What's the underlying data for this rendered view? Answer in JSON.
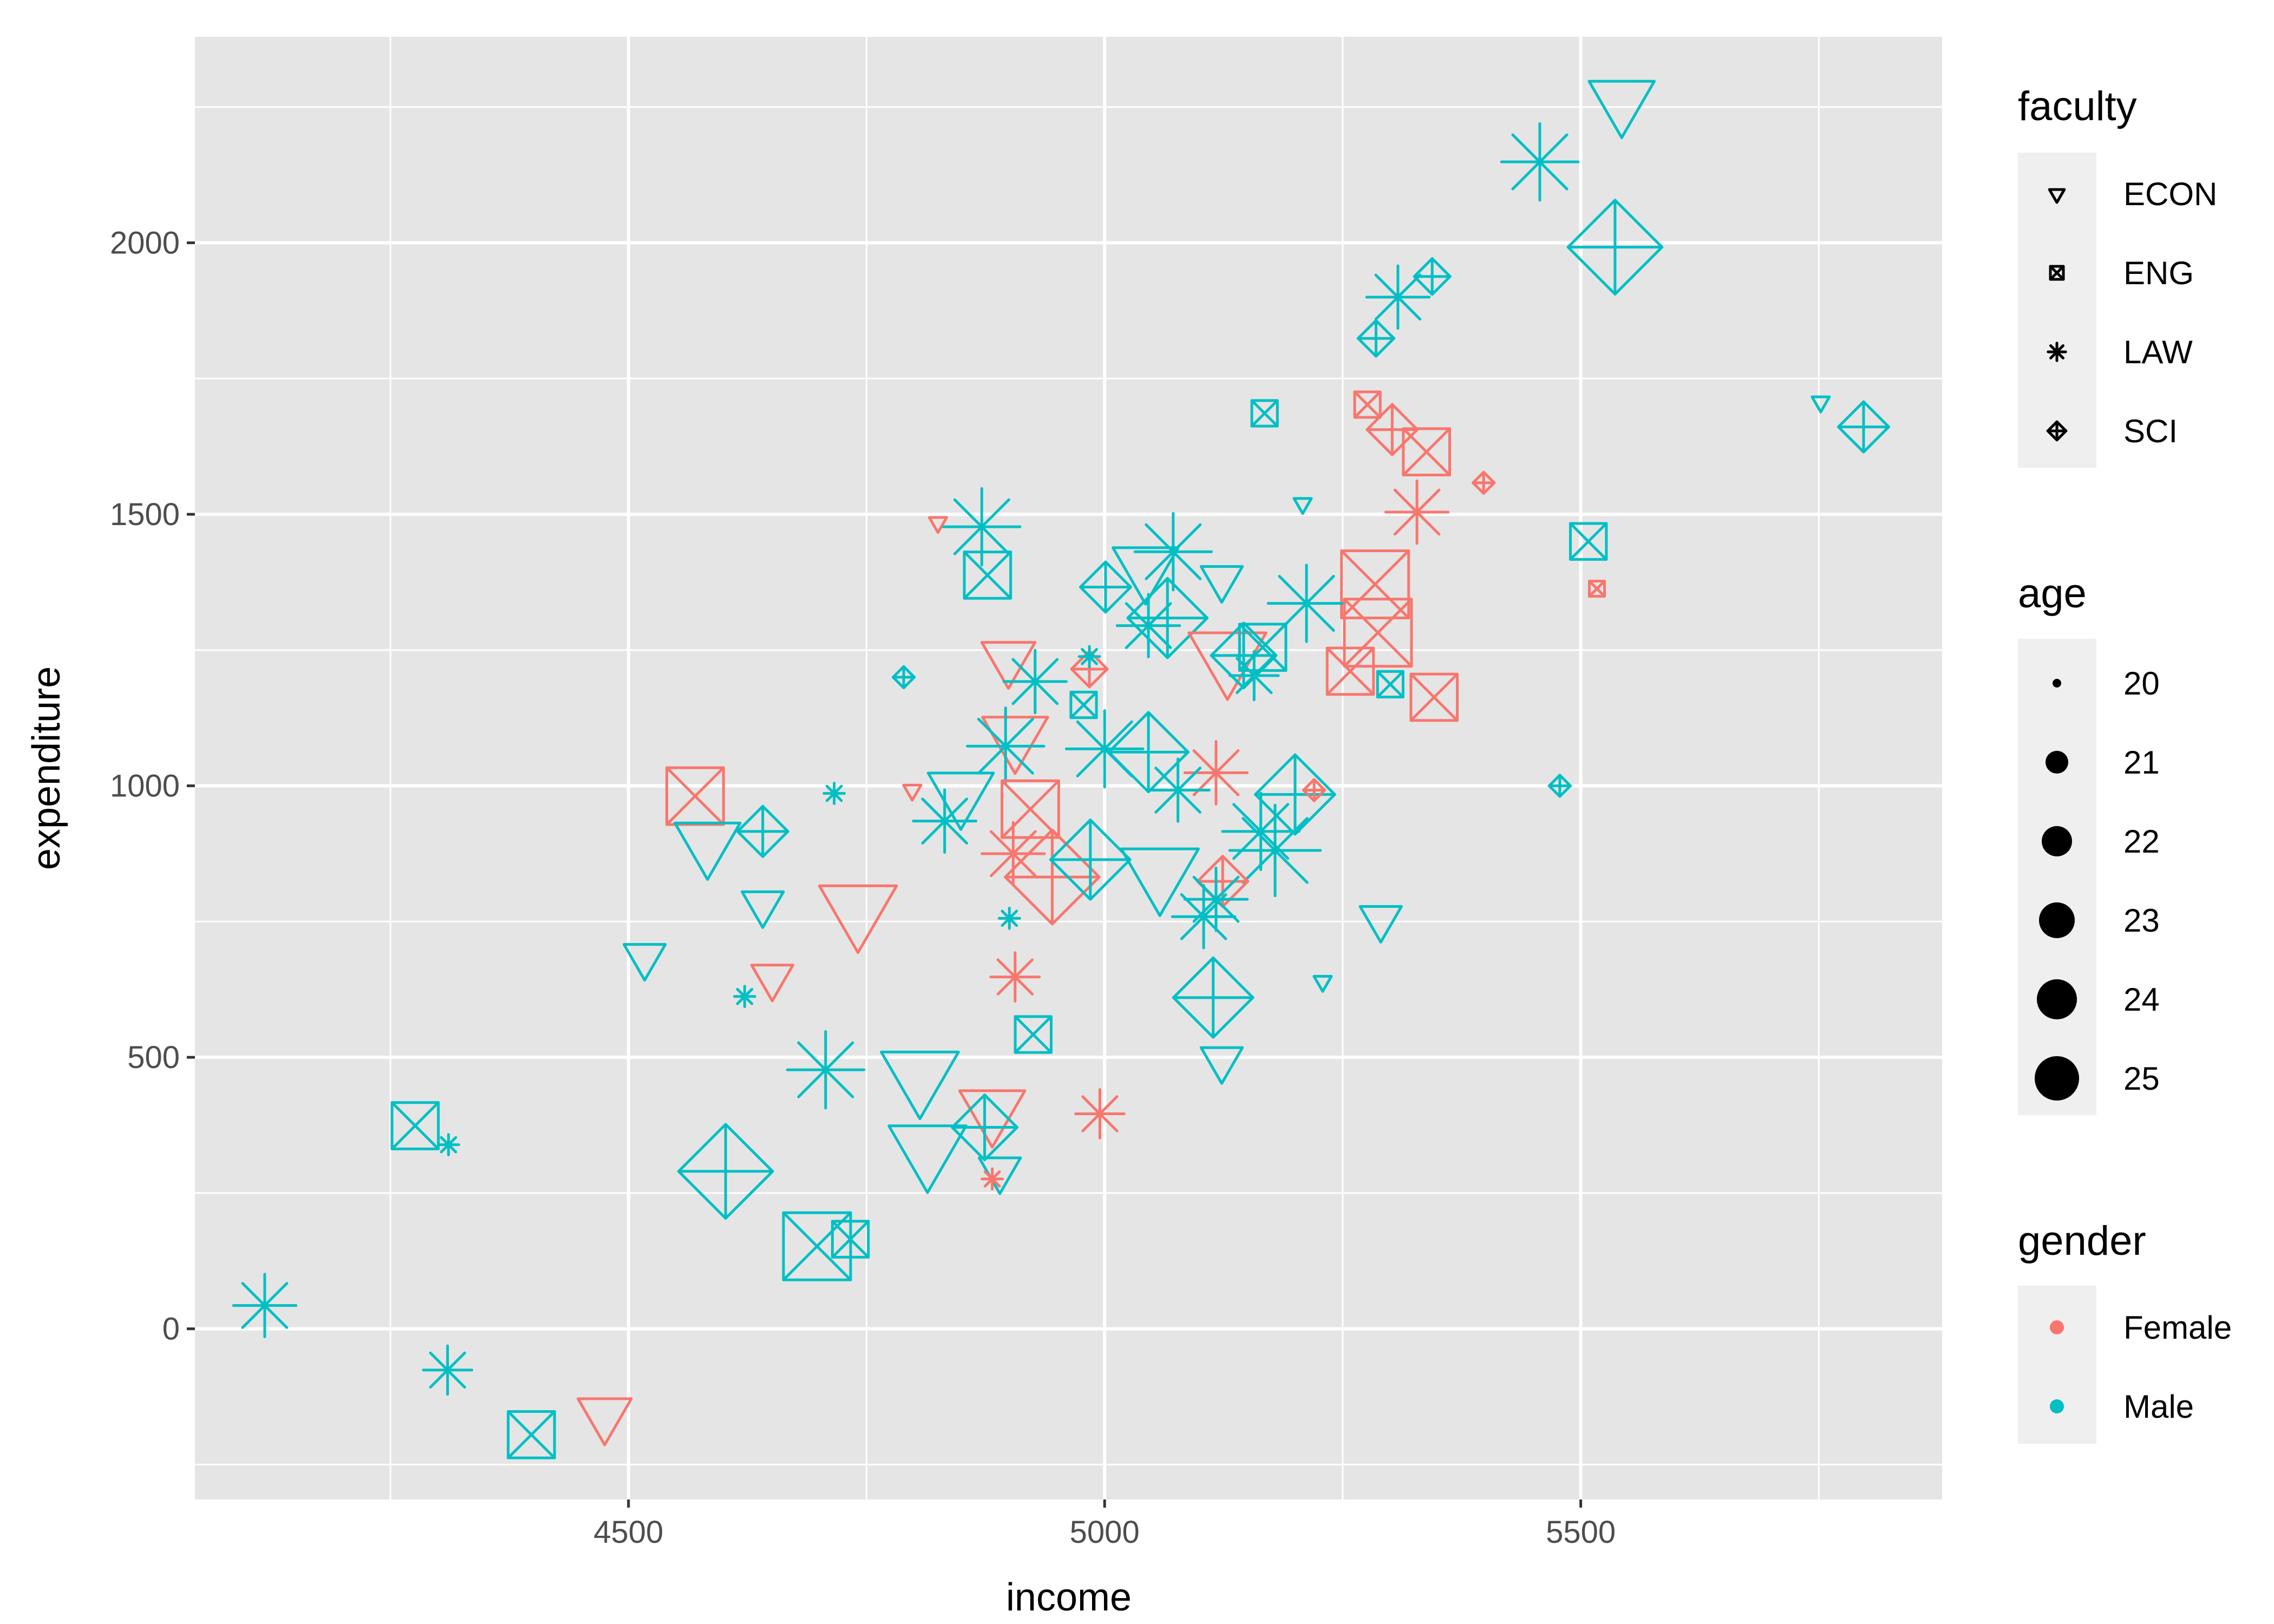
{
  "chart_data": {
    "type": "scatter",
    "title": "",
    "xlabel": "income",
    "ylabel": "expenditure",
    "xlim": [
      4050,
      5880
    ],
    "ylim": [
      -320,
      2370
    ],
    "x_ticks": [
      4500,
      5000,
      5500
    ],
    "y_ticks": [
      0,
      500,
      1000,
      1500,
      2000
    ],
    "x_minor": [
      4250,
      4750,
      5250,
      5750
    ],
    "y_minor": [
      -250,
      250,
      750,
      1250,
      1750,
      2250
    ],
    "grid": true,
    "legend_position": "right",
    "aesthetics": {
      "x": "income",
      "y": "expenditure",
      "shape": "faculty",
      "size": "age",
      "color": "gender"
    },
    "legends": {
      "faculty": {
        "title": "faculty",
        "entries": [
          {
            "label": "ECON",
            "shape": "triangle-down"
          },
          {
            "label": "ENG",
            "shape": "square-cross"
          },
          {
            "label": "LAW",
            "shape": "asterisk"
          },
          {
            "label": "SCI",
            "shape": "diamond-plus"
          }
        ]
      },
      "age": {
        "title": "age",
        "entries": [
          20,
          21,
          22,
          23,
          24,
          25
        ]
      },
      "gender": {
        "title": "gender",
        "entries": [
          {
            "label": "Female",
            "color": "#F8766D"
          },
          {
            "label": "Male",
            "color": "#00BFC4"
          }
        ]
      }
    },
    "points": [
      {
        "income": 5543,
        "expenditure": 2263,
        "faculty": "ECON",
        "gender": "Male",
        "age": 24
      },
      {
        "income": 5457,
        "expenditure": 2149,
        "faculty": "LAW",
        "gender": "Male",
        "age": 24
      },
      {
        "income": 5536,
        "expenditure": 1992,
        "faculty": "SCI",
        "gender": "Male",
        "age": 25
      },
      {
        "income": 5308,
        "expenditure": 1900,
        "faculty": "LAW",
        "gender": "Male",
        "age": 23
      },
      {
        "income": 5344,
        "expenditure": 1938,
        "faculty": "SCI",
        "gender": "Male",
        "age": 21
      },
      {
        "income": 5285,
        "expenditure": 1824,
        "faculty": "SCI",
        "gender": "Male",
        "age": 21
      },
      {
        "income": 5168,
        "expenditure": 1686,
        "faculty": "ENG",
        "gender": "Male",
        "age": 21
      },
      {
        "income": 5276,
        "expenditure": 1702,
        "faculty": "ENG",
        "gender": "Female",
        "age": 21
      },
      {
        "income": 5302,
        "expenditure": 1656,
        "faculty": "SCI",
        "gender": "Female",
        "age": 22
      },
      {
        "income": 5338,
        "expenditure": 1615,
        "faculty": "ENG",
        "gender": "Female",
        "age": 23
      },
      {
        "income": 5752,
        "expenditure": 1707,
        "faculty": "ECON",
        "gender": "Male",
        "age": 20
      },
      {
        "income": 5797,
        "expenditure": 1661,
        "faculty": "SCI",
        "gender": "Male",
        "age": 22
      },
      {
        "income": 5398,
        "expenditure": 1558,
        "faculty": "SCI",
        "gender": "Female",
        "age": 20
      },
      {
        "income": 5328,
        "expenditure": 1504,
        "faculty": "LAW",
        "gender": "Female",
        "age": 23
      },
      {
        "income": 5208,
        "expenditure": 1520,
        "faculty": "ECON",
        "gender": "Male",
        "age": 20
      },
      {
        "income": 5508,
        "expenditure": 1450,
        "faculty": "ENG",
        "gender": "Male",
        "age": 22
      },
      {
        "income": 5517,
        "expenditure": 1363,
        "faculty": "ENG",
        "gender": "Female",
        "age": 20
      },
      {
        "income": 4825,
        "expenditure": 1485,
        "faculty": "ECON",
        "gender": "Female",
        "age": 20
      },
      {
        "income": 4871,
        "expenditure": 1477,
        "faculty": "LAW",
        "gender": "Male",
        "age": 24
      },
      {
        "income": 4877,
        "expenditure": 1388,
        "faculty": "ENG",
        "gender": "Male",
        "age": 23
      },
      {
        "income": 5001,
        "expenditure": 1366,
        "faculty": "SCI",
        "gender": "Male",
        "age": 22
      },
      {
        "income": 5043,
        "expenditure": 1404,
        "faculty": "ECON",
        "gender": "Male",
        "age": 24
      },
      {
        "income": 5072,
        "expenditure": 1431,
        "faculty": "LAW",
        "gender": "Male",
        "age": 24
      },
      {
        "income": 5123,
        "expenditure": 1382,
        "faculty": "ECON",
        "gender": "Male",
        "age": 22
      },
      {
        "income": 5284,
        "expenditure": 1371,
        "faculty": "ENG",
        "gender": "Female",
        "age": 25
      },
      {
        "income": 5212,
        "expenditure": 1336,
        "faculty": "LAW",
        "gender": "Male",
        "age": 24
      },
      {
        "income": 5066,
        "expenditure": 1309,
        "faculty": "SCI",
        "gender": "Male",
        "age": 24
      },
      {
        "income": 5046,
        "expenditure": 1295,
        "faculty": "LAW",
        "gender": "Male",
        "age": 23
      },
      {
        "income": 5287,
        "expenditure": 1282,
        "faculty": "ENG",
        "gender": "Female",
        "age": 25
      },
      {
        "income": 5129,
        "expenditure": 1241,
        "faculty": "ECON",
        "gender": "Female",
        "age": 25
      },
      {
        "income": 5166,
        "expenditure": 1255,
        "faculty": "ENG",
        "gender": "Male",
        "age": 23
      },
      {
        "income": 5146,
        "expenditure": 1240,
        "faculty": "SCI",
        "gender": "Male",
        "age": 23
      },
      {
        "income": 5258,
        "expenditure": 1211,
        "faculty": "ENG",
        "gender": "Female",
        "age": 23
      },
      {
        "income": 5300,
        "expenditure": 1187,
        "faculty": "ENG",
        "gender": "Male",
        "age": 21
      },
      {
        "income": 5346,
        "expenditure": 1163,
        "faculty": "ENG",
        "gender": "Female",
        "age": 23
      },
      {
        "income": 5157,
        "expenditure": 1203,
        "faculty": "LAW",
        "gender": "Male",
        "age": 22
      },
      {
        "income": 4899,
        "expenditure": 1236,
        "faculty": "ECON",
        "gender": "Female",
        "age": 23
      },
      {
        "income": 4984,
        "expenditure": 1215,
        "faculty": "SCI",
        "gender": "Female",
        "age": 21
      },
      {
        "income": 4984,
        "expenditure": 1238,
        "faculty": "LAW",
        "gender": "Male",
        "age": 20
      },
      {
        "income": 4927,
        "expenditure": 1192,
        "faculty": "LAW",
        "gender": "Male",
        "age": 23
      },
      {
        "income": 4789,
        "expenditure": 1200,
        "faculty": "SCI",
        "gender": "Male",
        "age": 20
      },
      {
        "income": 4978,
        "expenditure": 1149,
        "faculty": "ENG",
        "gender": "Male",
        "age": 21
      },
      {
        "income": 4906,
        "expenditure": 1092,
        "faculty": "ECON",
        "gender": "Female",
        "age": 24
      },
      {
        "income": 4896,
        "expenditure": 1073,
        "faculty": "LAW",
        "gender": "Male",
        "age": 24
      },
      {
        "income": 5000,
        "expenditure": 1068,
        "faculty": "LAW",
        "gender": "Male",
        "age": 24
      },
      {
        "income": 5046,
        "expenditure": 1062,
        "faculty": "SCI",
        "gender": "Male",
        "age": 24
      },
      {
        "income": 5117,
        "expenditure": 1024,
        "faculty": "LAW",
        "gender": "Female",
        "age": 23
      },
      {
        "income": 5077,
        "expenditure": 992,
        "faculty": "LAW",
        "gender": "Male",
        "age": 23
      },
      {
        "income": 5200,
        "expenditure": 984,
        "faculty": "SCI",
        "gender": "Male",
        "age": 24
      },
      {
        "income": 5220,
        "expenditure": 992,
        "faculty": "SCI",
        "gender": "Female",
        "age": 20
      },
      {
        "income": 4849,
        "expenditure": 989,
        "faculty": "ECON",
        "gender": "Male",
        "age": 24
      },
      {
        "income": 4922,
        "expenditure": 957,
        "faculty": "ENG",
        "gender": "Female",
        "age": 24
      },
      {
        "income": 4570,
        "expenditure": 981,
        "faculty": "ENG",
        "gender": "Female",
        "age": 24
      },
      {
        "income": 4716,
        "expenditure": 986,
        "faculty": "LAW",
        "gender": "Male",
        "age": 20
      },
      {
        "income": 4798,
        "expenditure": 992,
        "faculty": "ECON",
        "gender": "Female",
        "age": 20
      },
      {
        "income": 4641,
        "expenditure": 916,
        "faculty": "SCI",
        "gender": "Male",
        "age": 22
      },
      {
        "income": 4583,
        "expenditure": 897,
        "faculty": "ECON",
        "gender": "Male",
        "age": 24
      },
      {
        "income": 4832,
        "expenditure": 935,
        "faculty": "LAW",
        "gender": "Male",
        "age": 23
      },
      {
        "income": 5179,
        "expenditure": 881,
        "faculty": "LAW",
        "gender": "Male",
        "age": 25
      },
      {
        "income": 5164,
        "expenditure": 916,
        "faculty": "LAW",
        "gender": "Male",
        "age": 24
      },
      {
        "income": 4904,
        "expenditure": 875,
        "faculty": "LAW",
        "gender": "Female",
        "age": 23
      },
      {
        "income": 4945,
        "expenditure": 832,
        "faculty": "SCI",
        "gender": "Female",
        "age": 25
      },
      {
        "income": 4985,
        "expenditure": 864,
        "faculty": "SCI",
        "gender": "Male",
        "age": 24
      },
      {
        "income": 5058,
        "expenditure": 843,
        "faculty": "ECON",
        "gender": "Male",
        "age": 25
      },
      {
        "income": 5124,
        "expenditure": 824,
        "faculty": "SCI",
        "gender": "Female",
        "age": 22
      },
      {
        "income": 5117,
        "expenditure": 791,
        "faculty": "LAW",
        "gender": "Male",
        "age": 23
      },
      {
        "income": 5104,
        "expenditure": 759,
        "faculty": "LAW",
        "gender": "Male",
        "age": 23
      },
      {
        "income": 5478,
        "expenditure": 1000,
        "faculty": "SCI",
        "gender": "Male",
        "age": 20
      },
      {
        "income": 4641,
        "expenditure": 783,
        "faculty": "ECON",
        "gender": "Male",
        "age": 22
      },
      {
        "income": 4741,
        "expenditure": 775,
        "faculty": "ECON",
        "gender": "Female",
        "age": 25
      },
      {
        "income": 5290,
        "expenditure": 756,
        "faculty": "ECON",
        "gender": "Male",
        "age": 22
      },
      {
        "income": 4900,
        "expenditure": 756,
        "faculty": "LAW",
        "gender": "Male",
        "age": 20
      },
      {
        "income": 4517,
        "expenditure": 686,
        "faculty": "ECON",
        "gender": "Male",
        "age": 22
      },
      {
        "income": 4651,
        "expenditure": 648,
        "faculty": "ECON",
        "gender": "Female",
        "age": 22
      },
      {
        "income": 4622,
        "expenditure": 612,
        "faculty": "LAW",
        "gender": "Male",
        "age": 20
      },
      {
        "income": 4906,
        "expenditure": 648,
        "faculty": "LAW",
        "gender": "Female",
        "age": 22
      },
      {
        "income": 5229,
        "expenditure": 640,
        "faculty": "ECON",
        "gender": "Male",
        "age": 20
      },
      {
        "income": 5114,
        "expenditure": 610,
        "faculty": "SCI",
        "gender": "Male",
        "age": 24
      },
      {
        "income": 4925,
        "expenditure": 542,
        "faculty": "ENG",
        "gender": "Male",
        "age": 22
      },
      {
        "income": 5123,
        "expenditure": 496,
        "faculty": "ECON",
        "gender": "Male",
        "age": 22
      },
      {
        "income": 4707,
        "expenditure": 477,
        "faculty": "LAW",
        "gender": "Male",
        "age": 24
      },
      {
        "income": 4806,
        "expenditure": 469,
        "faculty": "ECON",
        "gender": "Male",
        "age": 25
      },
      {
        "income": 4995,
        "expenditure": 396,
        "faculty": "LAW",
        "gender": "Female",
        "age": 22
      },
      {
        "income": 4882,
        "expenditure": 404,
        "faculty": "ECON",
        "gender": "Female",
        "age": 24
      },
      {
        "income": 4874,
        "expenditure": 371,
        "faculty": "SCI",
        "gender": "Male",
        "age": 23
      },
      {
        "income": 4814,
        "expenditure": 333,
        "faculty": "ECON",
        "gender": "Male",
        "age": 25
      },
      {
        "income": 4890,
        "expenditure": 293,
        "faculty": "ECON",
        "gender": "Male",
        "age": 22
      },
      {
        "income": 4882,
        "expenditure": 276,
        "faculty": "LAW",
        "gender": "Female",
        "age": 20
      },
      {
        "income": 4602,
        "expenditure": 290,
        "faculty": "SCI",
        "gender": "Male",
        "age": 25
      },
      {
        "income": 4276,
        "expenditure": 374,
        "faculty": "ENG",
        "gender": "Male",
        "age": 23
      },
      {
        "income": 4311,
        "expenditure": 339,
        "faculty": "LAW",
        "gender": "Male",
        "age": 20
      },
      {
        "income": 4698,
        "expenditure": 152,
        "faculty": "ENG",
        "gender": "Male",
        "age": 25
      },
      {
        "income": 4733,
        "expenditure": 165,
        "faculty": "ENG",
        "gender": "Male",
        "age": 22
      },
      {
        "income": 4118,
        "expenditure": 43,
        "faculty": "LAW",
        "gender": "Male",
        "age": 23
      },
      {
        "income": 4310,
        "expenditure": -76,
        "faculty": "LAW",
        "gender": "Male",
        "age": 22
      },
      {
        "income": 4398,
        "expenditure": -195,
        "faculty": "ENG",
        "gender": "Male",
        "age": 23
      },
      {
        "income": 4475,
        "expenditure": -157,
        "faculty": "ECON",
        "gender": "Female",
        "age": 23
      }
    ]
  },
  "colors": {
    "panel_bg": "#E5E5E5",
    "grid_major": "#FFFFFF",
    "legend_key_bg": "#EFEFEF",
    "female": "#F8766D",
    "male": "#00BFC4",
    "axis_text": "#4D4D4D",
    "tick": "#333333"
  }
}
